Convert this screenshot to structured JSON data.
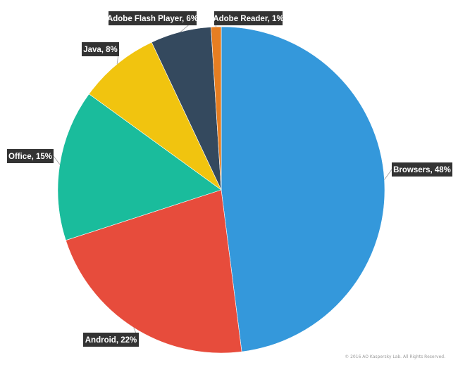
{
  "chart_data": {
    "type": "pie",
    "title": "",
    "legend": "none",
    "slices": [
      {
        "label": "Browsers, 48%",
        "name": "Browsers",
        "value": 48,
        "color": "#3498db"
      },
      {
        "label": "Android, 22%",
        "name": "Android",
        "value": 22,
        "color": "#e74c3c"
      },
      {
        "label": "Office, 15%",
        "name": "Office",
        "value": 15,
        "color": "#1abc9c"
      },
      {
        "label": "Java, 8%",
        "name": "Java",
        "value": 8,
        "color": "#f1c40f"
      },
      {
        "label": "Adobe Flash Player, 6%",
        "name": "Adobe Flash Player",
        "value": 6,
        "color": "#34495e"
      },
      {
        "label": "Adobe Reader, 1%",
        "name": "Adobe Reader",
        "value": 1,
        "color": "#e67e22"
      }
    ]
  },
  "colors": {
    "label_box": "#333333",
    "leader_line": "#999999"
  },
  "footer": {
    "copyright": "© 2016 AO Kaspersky Lab. All Rights Reserved."
  }
}
